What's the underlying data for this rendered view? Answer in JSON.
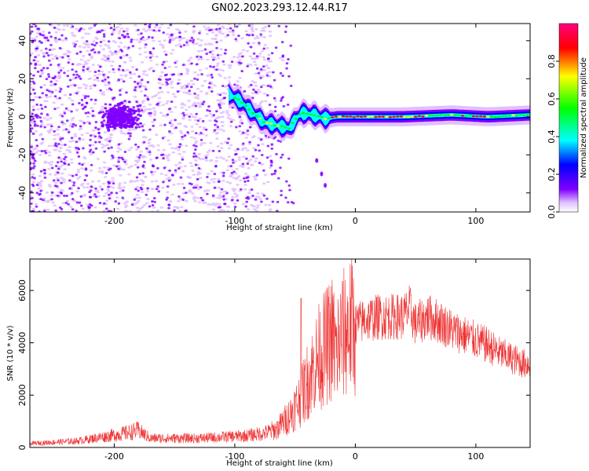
{
  "title": "GN02.2023.293.12.44.R17",
  "chart_data": [
    {
      "type": "heatmap",
      "xlabel": "Height of straight line (km)",
      "ylabel": "Frequency (Hz)",
      "xlim": [
        -270,
        145
      ],
      "ylim": [
        -50,
        49
      ],
      "xticks": [
        -200,
        -100,
        0,
        100
      ],
      "yticks": [
        -40,
        -20,
        0,
        20,
        40
      ],
      "colorbar": {
        "label": "Normalized spectral amplitude",
        "range": [
          0,
          1
        ],
        "ticks": [
          0.0,
          0.2,
          0.4,
          0.6,
          0.8
        ],
        "tick_labels": [
          "0.0",
          "0.2",
          "0.4",
          "0.6",
          "0.8"
        ],
        "colormap": [
          "#ffffff",
          "#e0c0ff",
          "#8000ff",
          "#0000ff",
          "#00ffff",
          "#00ff00",
          "#ffff00",
          "#ff0000",
          "#ff0080"
        ]
      },
      "features": {
        "noise_region_x": [
          -270,
          -70
        ],
        "noise_blob_center": [
          -195,
          0
        ],
        "signal_trace": [
          [
            -105,
            12
          ],
          [
            -95,
            8
          ],
          [
            -85,
            2
          ],
          [
            -75,
            -3
          ],
          [
            -62,
            -5
          ],
          [
            -55,
            -6
          ],
          [
            -45,
            2
          ],
          [
            -35,
            1
          ],
          [
            -25,
            -1
          ],
          [
            -15,
            0
          ],
          [
            0,
            0
          ],
          [
            40,
            0
          ],
          [
            80,
            1
          ],
          [
            110,
            0
          ],
          [
            145,
            1
          ]
        ],
        "descending_branch": [
          [
            -32,
            -23
          ],
          [
            -28,
            -30
          ],
          [
            -25,
            -36
          ]
        ]
      }
    },
    {
      "type": "line",
      "xlabel": "Height of straight line (km)",
      "ylabel": "SNR (10 * v/v)",
      "xlim": [
        -270,
        145
      ],
      "ylim": [
        0,
        7200
      ],
      "xticks": [
        -200,
        -100,
        0,
        100
      ],
      "yticks": [
        0,
        2000,
        4000,
        6000
      ],
      "color": "#ee3333",
      "series": [
        {
          "x": [
            -270,
            -250,
            -230,
            -210,
            -190,
            -180,
            -170,
            -150,
            -130,
            -110,
            -90,
            -75,
            -65,
            -55,
            -45,
            -40,
            -35,
            -30,
            -25,
            -22,
            -19,
            -16,
            -14,
            -10,
            -5,
            0,
            10,
            20,
            30,
            40,
            45,
            50,
            60,
            70,
            80,
            90,
            100,
            110,
            120,
            130,
            140,
            145
          ],
          "y": [
            150,
            200,
            250,
            400,
            550,
            650,
            350,
            350,
            350,
            400,
            450,
            550,
            700,
            1200,
            1900,
            2500,
            3000,
            3500,
            3800,
            4000,
            4200,
            3600,
            4000,
            4300,
            4600,
            4700,
            4900,
            5000,
            5000,
            5000,
            5300,
            4700,
            5000,
            4800,
            4500,
            4300,
            4100,
            3900,
            3600,
            3400,
            3200,
            3200
          ]
        }
      ]
    }
  ]
}
